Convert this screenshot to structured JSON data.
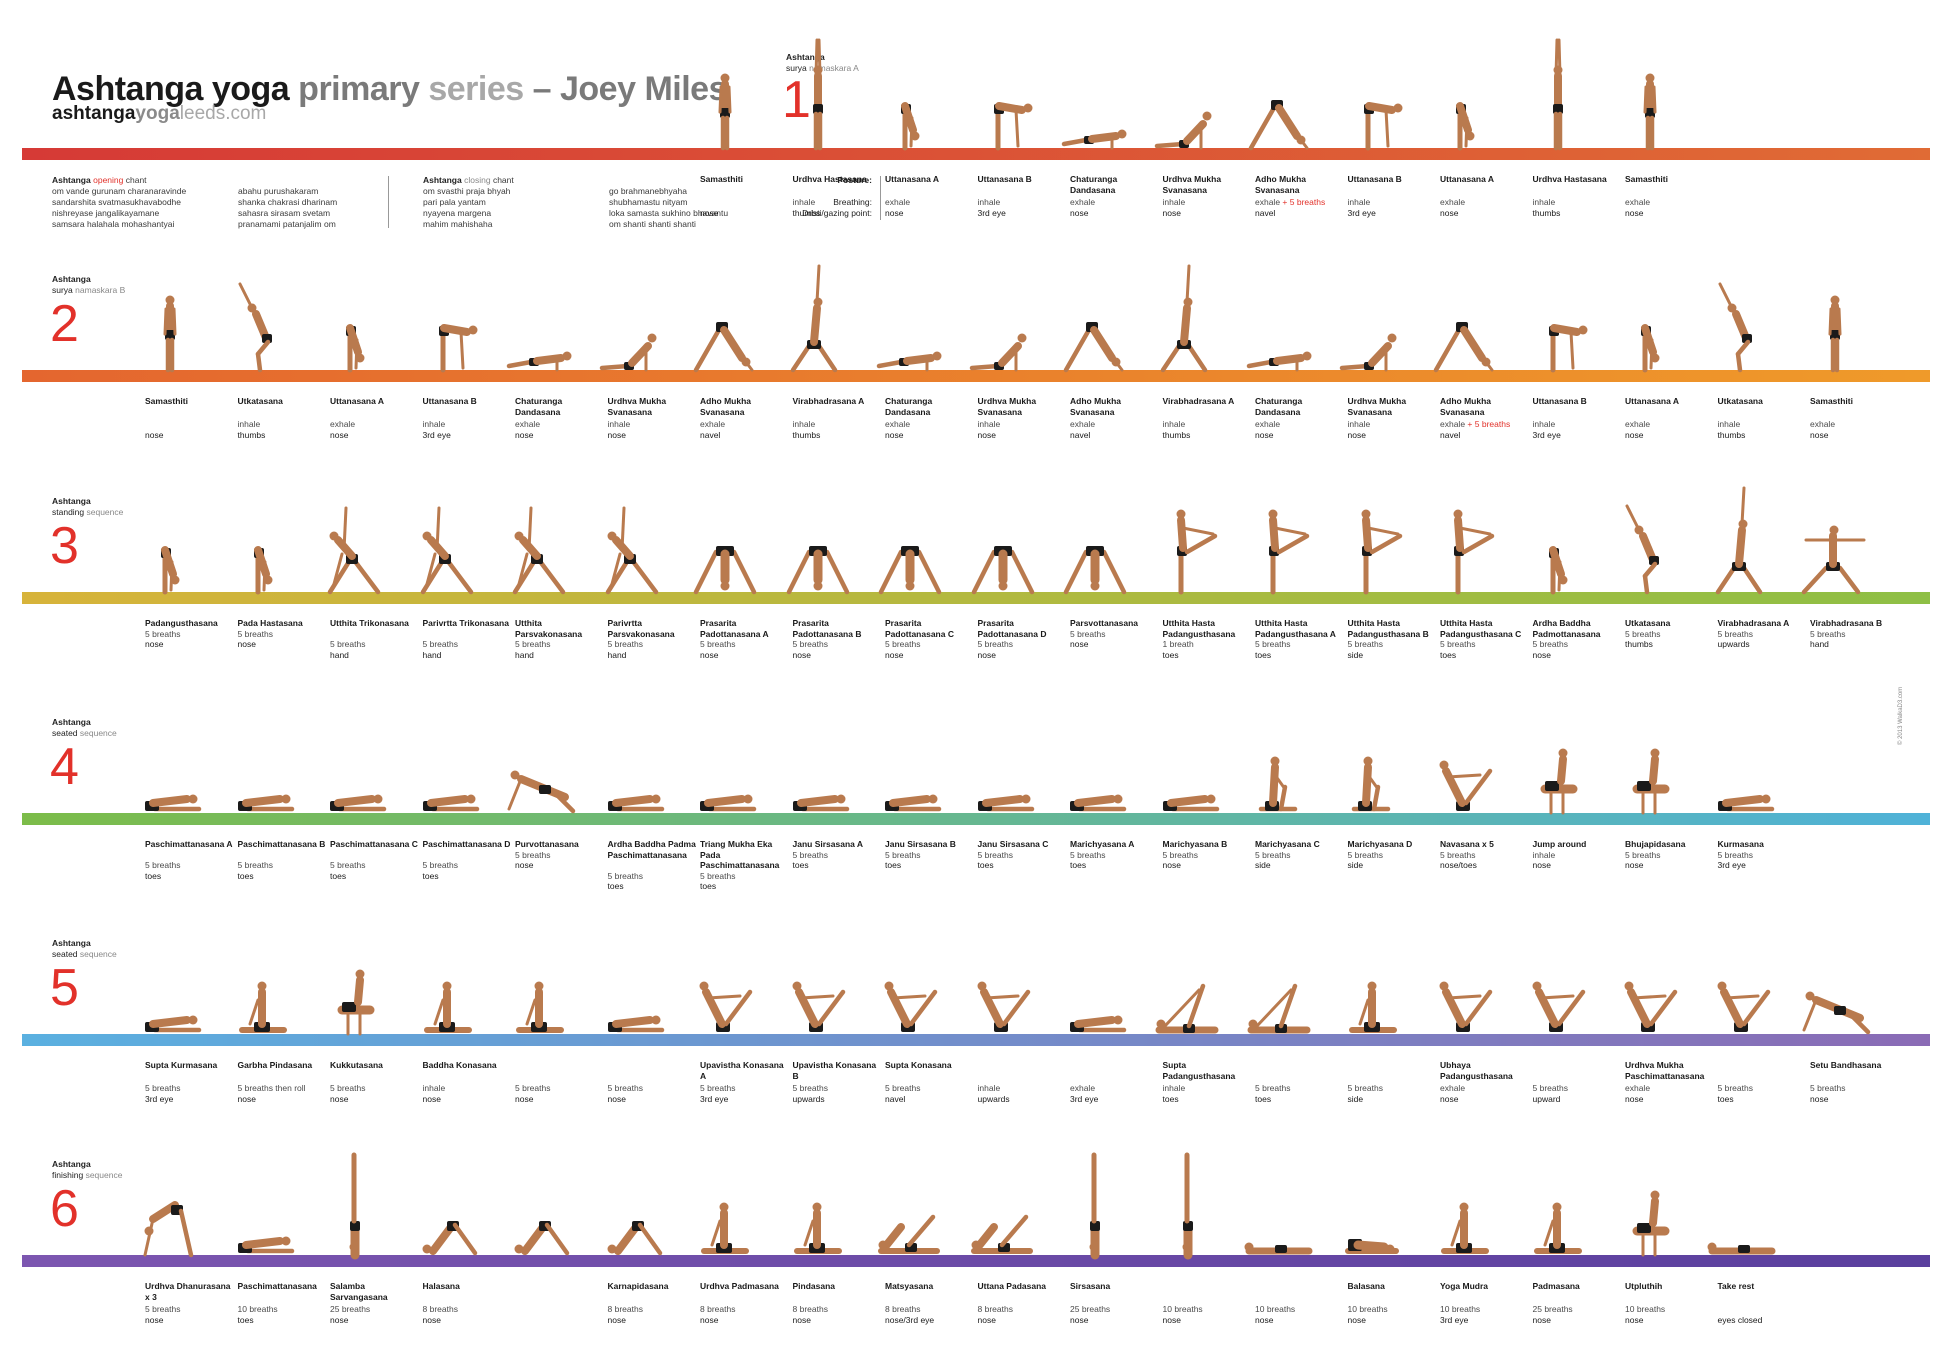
{
  "header": {
    "title_parts": [
      "Ashtanga yoga",
      "primary",
      "series",
      "– Joey Miles"
    ],
    "site_parts": [
      "ashtanga",
      "yoga",
      "leeds.com"
    ]
  },
  "chants": {
    "opening": {
      "heading_a": "Ashtanga",
      "heading_kw": "opening",
      "heading_b": "chant",
      "col1": [
        "om    vande gurunam charanaravinde",
        "sandarshita svatmasukhavabodhe",
        "nishreyase jangalikayamane",
        "samsara halahala mohashantyai"
      ],
      "col2": [
        "abahu purushakaram",
        "shanka chakrasi dharinam",
        "sahasra sirasam svetam",
        "pranamami patanjalim    om"
      ]
    },
    "closing": {
      "heading_a": "Ashtanga",
      "heading_kw": "closing",
      "heading_b": "chant",
      "col1": [
        "om    svasthi praja bhyah",
        "pari pala yantam",
        "nyayena margena",
        "mahim mahishaha"
      ],
      "col2": [
        "go brahmanebhyaha",
        "shubhamastu nityam",
        "loka samasta sukhino bhavantu",
        "om    shanti shanti shanti"
      ]
    }
  },
  "legend": {
    "posture": "Posture:",
    "breathing": "Breathing:",
    "gaze": "Dristi/gazing point:"
  },
  "copyright": "© 2013 WalkaD3.com",
  "colors": {
    "mat1": "#d94a3a",
    "mat2": "#e8792e",
    "mat3": "#c7b63a",
    "mat4": "#76b84a",
    "mat5": "#5aa4d6",
    "mat6": "#6a4aa8",
    "accent_red": "#e2312a",
    "skin": "#b97a4e",
    "shorts": "#1a1a1a"
  },
  "sections": [
    {
      "num": "1",
      "label_top": "Ashtanga",
      "label_kw": "surya",
      "label_sub": "namaskara A",
      "poses": [
        {
          "name": "Samasthiti",
          "breath": "",
          "gaze": "nose"
        },
        {
          "name": "Urdhva Hastasana",
          "breath": "inhale",
          "gaze": "thumbs"
        },
        {
          "name": "Uttanasana A",
          "breath": "exhale",
          "gaze": "nose"
        },
        {
          "name": "Uttanasana B",
          "breath": "inhale",
          "gaze": "3rd eye"
        },
        {
          "name": "Chaturanga Dandasana",
          "breath": "exhale",
          "gaze": "nose"
        },
        {
          "name": "Urdhva Mukha Svanasana",
          "breath": "inhale",
          "gaze": "nose"
        },
        {
          "name": "Adho Mukha Svanasana",
          "breath": "exhale",
          "breath_extra": "+ 5 breaths",
          "gaze": "navel"
        },
        {
          "name": "Uttanasana B",
          "breath": "inhale",
          "gaze": "3rd eye"
        },
        {
          "name": "Uttanasana A",
          "breath": "exhale",
          "gaze": "nose"
        },
        {
          "name": "Urdhva Hastasana",
          "breath": "inhale",
          "gaze": "thumbs"
        },
        {
          "name": "Samasthiti",
          "breath": "exhale",
          "gaze": "nose"
        }
      ]
    },
    {
      "num": "2",
      "label_top": "Ashtanga",
      "label_kw": "surya",
      "label_sub": "namaskara B",
      "poses": [
        {
          "name": "Samasthiti",
          "breath": "",
          "gaze": "nose"
        },
        {
          "name": "Utkatasana",
          "breath": "inhale",
          "gaze": "thumbs"
        },
        {
          "name": "Uttanasana A",
          "breath": "exhale",
          "gaze": "nose"
        },
        {
          "name": "Uttanasana B",
          "breath": "inhale",
          "gaze": "3rd eye"
        },
        {
          "name": "Chaturanga Dandasana",
          "breath": "exhale",
          "gaze": "nose"
        },
        {
          "name": "Urdhva Mukha Svanasana",
          "breath": "inhale",
          "gaze": "nose"
        },
        {
          "name": "Adho Mukha Svanasana",
          "breath": "exhale",
          "gaze": "navel"
        },
        {
          "name": "Virabhadrasana A",
          "breath": "inhale",
          "gaze": "thumbs"
        },
        {
          "name": "Chaturanga Dandasana",
          "breath": "exhale",
          "gaze": "nose"
        },
        {
          "name": "Urdhva Mukha Svanasana",
          "breath": "inhale",
          "gaze": "nose"
        },
        {
          "name": "Adho Mukha Svanasana",
          "breath": "exhale",
          "gaze": "navel"
        },
        {
          "name": "Virabhadrasana A",
          "breath": "inhale",
          "gaze": "thumbs"
        },
        {
          "name": "Chaturanga Dandasana",
          "breath": "exhale",
          "gaze": "nose"
        },
        {
          "name": "Urdhva Mukha Svanasana",
          "breath": "inhale",
          "gaze": "nose"
        },
        {
          "name": "Adho Mukha Svanasana",
          "breath": "exhale",
          "breath_extra": "+ 5 breaths",
          "gaze": "navel"
        },
        {
          "name": "Uttanasana B",
          "breath": "inhale",
          "gaze": "3rd eye"
        },
        {
          "name": "Uttanasana A",
          "breath": "exhale",
          "gaze": "nose"
        },
        {
          "name": "Utkatasana",
          "breath": "inhale",
          "gaze": "thumbs"
        },
        {
          "name": "Samasthiti",
          "breath": "exhale",
          "gaze": "nose"
        }
      ]
    },
    {
      "num": "3",
      "label_top": "Ashtanga",
      "label_kw": "standing",
      "label_sub": "sequence",
      "poses": [
        {
          "name": "Padangusthasana",
          "breath": "5 breaths",
          "gaze": "nose"
        },
        {
          "name": "Pada Hastasana",
          "breath": "5 breaths",
          "gaze": "nose"
        },
        {
          "name": "Utthita Trikonasana",
          "breath": "5 breaths",
          "gaze": "hand"
        },
        {
          "name": "Parivrtta Trikonasana",
          "breath": "5 breaths",
          "gaze": "hand"
        },
        {
          "name": "Utthita Parsvakonasana",
          "breath": "5 breaths",
          "gaze": "hand"
        },
        {
          "name": "Parivrtta Parsvakonasana",
          "breath": "5 breaths",
          "gaze": "hand"
        },
        {
          "name": "Prasarita Padottanasana A",
          "breath": "5 breaths",
          "gaze": "nose"
        },
        {
          "name": "Prasarita Padottanasana B",
          "breath": "5 breaths",
          "gaze": "nose"
        },
        {
          "name": "Prasarita Padottanasana C",
          "breath": "5 breaths",
          "gaze": "nose"
        },
        {
          "name": "Prasarita Padottanasana D",
          "breath": "5 breaths",
          "gaze": "nose"
        },
        {
          "name": "Parsvottanasana",
          "breath": "5 breaths",
          "gaze": "nose"
        },
        {
          "name": "Utthita Hasta Padangusthasana",
          "breath": "1 breath",
          "gaze": "toes"
        },
        {
          "name": "Utthita Hasta Padangusthasana A",
          "breath": "5 breaths",
          "gaze": "toes"
        },
        {
          "name": "Utthita Hasta Padangusthasana B",
          "breath": "5 breaths",
          "gaze": "side"
        },
        {
          "name": "Utthita Hasta Padangusthasana C",
          "breath": "5 breaths",
          "gaze": "toes"
        },
        {
          "name": "Ardha Baddha Padmottanasana",
          "breath": "5 breaths",
          "gaze": "nose"
        },
        {
          "name": "Utkatasana",
          "breath": "5 breaths",
          "gaze": "thumbs"
        },
        {
          "name": "Virabhadrasana A",
          "breath": "5 breaths",
          "gaze": "upwards"
        },
        {
          "name": "Virabhadrasana B",
          "breath": "5 breaths",
          "gaze": "hand"
        }
      ]
    },
    {
      "num": "4",
      "label_top": "Ashtanga",
      "label_kw": "seated",
      "label_sub": "sequence",
      "poses": [
        {
          "name": "Paschimattanasana A",
          "breath": "5 breaths",
          "gaze": "toes"
        },
        {
          "name": "Paschimattanasana B",
          "breath": "5 breaths",
          "gaze": "toes"
        },
        {
          "name": "Paschimattanasana C",
          "breath": "5 breaths",
          "gaze": "toes"
        },
        {
          "name": "Paschimattanasana D",
          "breath": "5 breaths",
          "gaze": "toes"
        },
        {
          "name": "Purvottanasana",
          "breath": "5 breaths",
          "gaze": "nose"
        },
        {
          "name": "Ardha Baddha Padma Paschimattanasana",
          "breath": "5 breaths",
          "gaze": "toes"
        },
        {
          "name": "Triang Mukha Eka Pada Paschimattanasana",
          "breath": "5 breaths",
          "gaze": "toes"
        },
        {
          "name": "Janu Sirsasana A",
          "breath": "5 breaths",
          "gaze": "toes"
        },
        {
          "name": "Janu Sirsasana B",
          "breath": "5 breaths",
          "gaze": "toes"
        },
        {
          "name": "Janu Sirsasana C",
          "breath": "5 breaths",
          "gaze": "toes"
        },
        {
          "name": "Marichyasana A",
          "breath": "5 breaths",
          "gaze": "toes"
        },
        {
          "name": "Marichyasana B",
          "breath": "5 breaths",
          "gaze": "nose"
        },
        {
          "name": "Marichyasana C",
          "breath": "5 breaths",
          "gaze": "side"
        },
        {
          "name": "Marichyasana D",
          "breath": "5 breaths",
          "gaze": "side"
        },
        {
          "name": "Navasana x 5",
          "breath": "5 breaths",
          "gaze": "nose/toes"
        },
        {
          "name": "Jump around",
          "breath": "inhale",
          "gaze": "nose"
        },
        {
          "name": "Bhujapidasana",
          "breath": "5 breaths",
          "gaze": "nose"
        },
        {
          "name": "Kurmasana",
          "breath": "5 breaths",
          "gaze": "3rd eye"
        }
      ]
    },
    {
      "num": "5",
      "label_top": "Ashtanga",
      "label_kw": "seated",
      "label_sub": "sequence",
      "poses": [
        {
          "name": "Supta Kurmasana",
          "breath": "5 breaths",
          "gaze": "3rd eye"
        },
        {
          "name": "Garbha Pindasana",
          "breath": "5 breaths then roll",
          "gaze": "nose"
        },
        {
          "name": "Kukkutasana",
          "breath": "5 breaths",
          "gaze": "nose"
        },
        {
          "name": "Baddha Konasana",
          "breath": "inhale",
          "gaze": "nose"
        },
        {
          "name": "",
          "breath": "5 breaths",
          "gaze": "nose"
        },
        {
          "name": "",
          "breath": "5 breaths",
          "gaze": "nose"
        },
        {
          "name": "Upavistha Konasana A",
          "breath": "5 breaths",
          "gaze": "3rd eye"
        },
        {
          "name": "Upavistha Konasana B",
          "breath": "5 breaths",
          "gaze": "upwards"
        },
        {
          "name": "Supta Konasana",
          "breath": "5 breaths",
          "gaze": "navel"
        },
        {
          "name": "",
          "breath": "inhale",
          "gaze": "upwards"
        },
        {
          "name": "",
          "breath": "exhale",
          "gaze": "3rd eye"
        },
        {
          "name": "Supta Padangusthasana",
          "breath": "inhale",
          "gaze": "toes"
        },
        {
          "name": "",
          "breath": "5 breaths",
          "gaze": "toes"
        },
        {
          "name": "",
          "breath": "5 breaths",
          "gaze": "side"
        },
        {
          "name": "Ubhaya Padangusthasana",
          "breath": "exhale",
          "gaze": "nose"
        },
        {
          "name": "",
          "breath": "5 breaths",
          "gaze": "upward"
        },
        {
          "name": "Urdhva Mukha Paschimattanasana",
          "breath": "exhale",
          "gaze": "nose"
        },
        {
          "name": "",
          "breath": "5 breaths",
          "gaze": "toes"
        },
        {
          "name": "Setu Bandhasana",
          "breath": "5 breaths",
          "gaze": "nose"
        }
      ]
    },
    {
      "num": "6",
      "label_top": "Ashtanga",
      "label_kw": "finishing",
      "label_sub": "sequence",
      "poses": [
        {
          "name": "Urdhva Dhanurasana x 3",
          "breath": "5 breaths",
          "gaze": "nose"
        },
        {
          "name": "Paschimattanasana",
          "breath": "10 breaths",
          "gaze": "toes"
        },
        {
          "name": "Salamba Sarvangasana",
          "breath": "25 breaths",
          "gaze": "nose"
        },
        {
          "name": "Halasana",
          "breath": "8 breaths",
          "gaze": "nose"
        },
        {
          "name": "",
          "breath": "",
          "gaze": ""
        },
        {
          "name": "Karnapidasana",
          "breath": "8 breaths",
          "gaze": "nose"
        },
        {
          "name": "Urdhva Padmasana",
          "breath": "8 breaths",
          "gaze": "nose"
        },
        {
          "name": "Pindasana",
          "breath": "8 breaths",
          "gaze": "nose"
        },
        {
          "name": "Matsyasana",
          "breath": "8 breaths",
          "gaze": "nose/3rd eye"
        },
        {
          "name": "Uttana Padasana",
          "breath": "8 breaths",
          "gaze": "nose"
        },
        {
          "name": "Sirsasana",
          "breath": "25 breaths",
          "gaze": "nose"
        },
        {
          "name": "",
          "breath": "10 breaths",
          "gaze": "nose"
        },
        {
          "name": "",
          "breath": "10 breaths",
          "gaze": "nose"
        },
        {
          "name": "Balasana",
          "breath": "10 breaths",
          "gaze": "nose"
        },
        {
          "name": "Yoga Mudra",
          "breath": "10 breaths",
          "gaze": "3rd eye"
        },
        {
          "name": "Padmasana",
          "breath": "25 breaths",
          "gaze": "nose"
        },
        {
          "name": "Utpluthih",
          "breath": "10 breaths",
          "gaze": "nose"
        },
        {
          "name": "Take rest",
          "breath": "",
          "gaze": "eyes closed"
        }
      ]
    }
  ]
}
